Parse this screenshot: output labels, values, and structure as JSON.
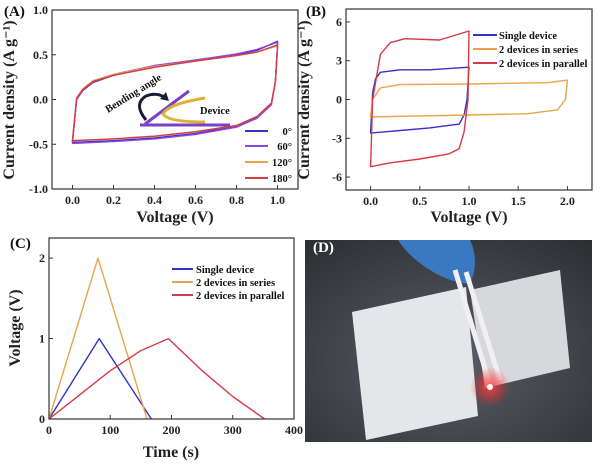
{
  "colors": {
    "blue": "#3232c8",
    "purple": "#8c46dc",
    "orange": "#e8a448",
    "red": "#d43a48"
  },
  "chart_data": [
    {
      "panel_label": "(A)",
      "type": "line",
      "xlabel": "Voltage (V)",
      "ylabel": "Current density (A g⁻¹)",
      "xlim": [
        -0.1,
        1.1
      ],
      "ylim": [
        -1.0,
        1.0
      ],
      "xticks": [
        "0.0",
        "0.2",
        "0.4",
        "0.6",
        "0.8",
        "1.0"
      ],
      "yticks": [
        "-1.0",
        "-0.5",
        "0.0",
        "0.5",
        "1.0"
      ],
      "legend_placement": "bottom-right",
      "annotations": [
        "Bending angle",
        "Device"
      ],
      "series": [
        {
          "name": "0°",
          "color": "#3232c8",
          "x": [
            0,
            0.02,
            0.05,
            0.1,
            0.2,
            0.4,
            0.6,
            0.8,
            0.9,
            1.0,
            1.0,
            0.99,
            0.97,
            0.9,
            0.8,
            0.6,
            0.4,
            0.2,
            0
          ],
          "y": [
            -0.47,
            0,
            0.1,
            0.19,
            0.27,
            0.37,
            0.44,
            0.5,
            0.55,
            0.65,
            0.6,
            0.2,
            -0.05,
            -0.2,
            -0.3,
            -0.38,
            -0.43,
            -0.46,
            -0.48
          ]
        },
        {
          "name": "60°",
          "color": "#8c46dc",
          "x": [
            0,
            0.02,
            0.05,
            0.1,
            0.2,
            0.4,
            0.6,
            0.8,
            0.9,
            1.0,
            1.0,
            0.99,
            0.97,
            0.9,
            0.8,
            0.6,
            0.4,
            0.2,
            0
          ],
          "y": [
            -0.48,
            0,
            0.11,
            0.2,
            0.28,
            0.38,
            0.44,
            0.51,
            0.56,
            0.64,
            0.6,
            0.2,
            -0.06,
            -0.21,
            -0.31,
            -0.39,
            -0.44,
            -0.47,
            -0.49
          ]
        },
        {
          "name": "120°",
          "color": "#e8a448",
          "x": [
            0,
            0.02,
            0.05,
            0.1,
            0.2,
            0.4,
            0.6,
            0.8,
            0.9,
            1.0,
            1.0,
            0.99,
            0.97,
            0.9,
            0.8,
            0.6,
            0.4,
            0.2,
            0
          ],
          "y": [
            -0.45,
            0.02,
            0.12,
            0.21,
            0.28,
            0.37,
            0.43,
            0.49,
            0.53,
            0.6,
            0.57,
            0.2,
            -0.04,
            -0.19,
            -0.29,
            -0.36,
            -0.41,
            -0.44,
            -0.46
          ]
        },
        {
          "name": "180°",
          "color": "#d43a48",
          "x": [
            0,
            0.02,
            0.05,
            0.1,
            0.2,
            0.4,
            0.6,
            0.8,
            0.9,
            1.0,
            1.0,
            0.99,
            0.97,
            0.9,
            0.8,
            0.6,
            0.4,
            0.2,
            0
          ],
          "y": [
            -0.46,
            0.01,
            0.11,
            0.2,
            0.27,
            0.36,
            0.43,
            0.49,
            0.53,
            0.61,
            0.58,
            0.2,
            -0.04,
            -0.19,
            -0.29,
            -0.36,
            -0.41,
            -0.44,
            -0.46
          ]
        }
      ]
    },
    {
      "panel_label": "(B)",
      "type": "line",
      "xlabel": "Voltage (V)",
      "ylabel": "Current density (A g⁻¹)",
      "xlim": [
        -0.25,
        2.25
      ],
      "ylim": [
        -7,
        7
      ],
      "xticks": [
        "0.0",
        "0.5",
        "1.0",
        "1.5",
        "2.0"
      ],
      "yticks": [
        "-6",
        "-3",
        "0",
        "3",
        "6"
      ],
      "legend_placement": "top-right",
      "series": [
        {
          "name": "Single device",
          "color": "#3232c8",
          "x": [
            0,
            0.02,
            0.05,
            0.1,
            0.3,
            0.6,
            1.0,
            0.98,
            0.95,
            0.9,
            0.6,
            0.3,
            0
          ],
          "y": [
            -2.5,
            0.5,
            1.6,
            2.1,
            2.3,
            2.3,
            2.5,
            0,
            -1.2,
            -1.9,
            -2.2,
            -2.4,
            -2.6
          ]
        },
        {
          "name": "2 devices in series",
          "color": "#e8a448",
          "x": [
            0,
            0.02,
            0.1,
            0.3,
            1.0,
            1.8,
            2.0,
            1.98,
            1.9,
            1.6,
            1.0,
            0.3,
            0
          ],
          "y": [
            -1.3,
            0,
            0.9,
            1.15,
            1.2,
            1.3,
            1.5,
            0,
            -0.8,
            -1.1,
            -1.2,
            -1.3,
            -1.35
          ]
        },
        {
          "name": "2 devices in parallel",
          "color": "#d43a48",
          "x": [
            0,
            0.02,
            0.1,
            0.2,
            0.35,
            0.7,
            1.0,
            0.99,
            0.95,
            0.9,
            0.8,
            0.5,
            0.2,
            0
          ],
          "y": [
            -5.2,
            0,
            3.5,
            4.4,
            4.7,
            4.6,
            5.3,
            0,
            -2.5,
            -3.8,
            -4.2,
            -4.6,
            -4.9,
            -5.2
          ]
        }
      ]
    },
    {
      "panel_label": "(C)",
      "type": "line",
      "xlabel": "Time (s)",
      "ylabel": "Voltage (V)",
      "xlim": [
        0,
        400
      ],
      "ylim": [
        0,
        2.25
      ],
      "xticks": [
        "0",
        "100",
        "200",
        "300",
        "400"
      ],
      "yticks": [
        "0",
        "1",
        "2"
      ],
      "legend_placement": "top-right",
      "series": [
        {
          "name": "Single device",
          "color": "#3232c8",
          "x": [
            0,
            82,
            167
          ],
          "y": [
            0,
            1,
            0
          ]
        },
        {
          "name": "2 devices in series",
          "color": "#e8a448",
          "x": [
            0,
            80,
            160
          ],
          "y": [
            0,
            2,
            0
          ]
        },
        {
          "name": "2 devices in parallel",
          "color": "#d43a48",
          "x": [
            0,
            50,
            100,
            150,
            195,
            250,
            300,
            352
          ],
          "y": [
            0,
            0.3,
            0.6,
            0.85,
            1,
            0.6,
            0.28,
            0
          ]
        }
      ]
    }
  ],
  "photo": {
    "panel_label": "(D)"
  }
}
